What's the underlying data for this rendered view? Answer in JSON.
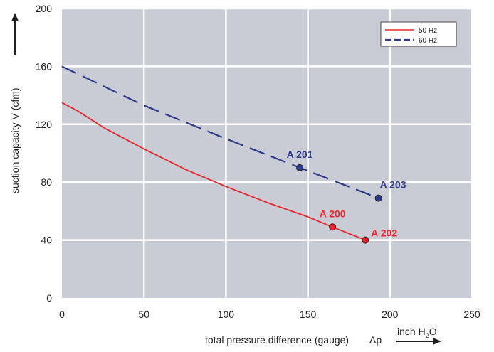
{
  "chart_data": {
    "type": "line",
    "xlabel": "total pressure difference (gauge)",
    "xlabel_symbol": "Δp",
    "xunit": "inch H",
    "xunit_sub": "2",
    "xunit_tail": "O",
    "ylabel": "suction capacity V (cfm)",
    "xlim": [
      0,
      250
    ],
    "ylim": [
      0,
      200
    ],
    "x_ticks": [
      0,
      50,
      100,
      150,
      200,
      250
    ],
    "y_ticks": [
      0,
      40,
      80,
      120,
      160,
      200
    ],
    "grid": true,
    "legend_position": "top-right",
    "series": [
      {
        "name": "50 Hz",
        "color": "#e8262d",
        "style": "solid",
        "x": [
          0,
          10,
          25,
          50,
          75,
          100,
          125,
          150,
          165,
          185
        ],
        "y": [
          135,
          129,
          118,
          103,
          89,
          77,
          66,
          56,
          49,
          40
        ]
      },
      {
        "name": "60 Hz",
        "color": "#2e3a8c",
        "style": "dashed",
        "x": [
          0,
          50,
          100,
          145,
          193
        ],
        "y": [
          160,
          133,
          110,
          90,
          69
        ]
      }
    ],
    "points": [
      {
        "label": "A 200",
        "x": 165,
        "y": 49,
        "series": 0
      },
      {
        "label": "A 202",
        "x": 185,
        "y": 40,
        "series": 0
      },
      {
        "label": "A 201",
        "x": 145,
        "y": 90,
        "series": 1
      },
      {
        "label": "A 203",
        "x": 193,
        "y": 69,
        "series": 1
      }
    ],
    "colors": {
      "plot_background": "#c9ccd4",
      "grid": "#ffffff"
    }
  }
}
